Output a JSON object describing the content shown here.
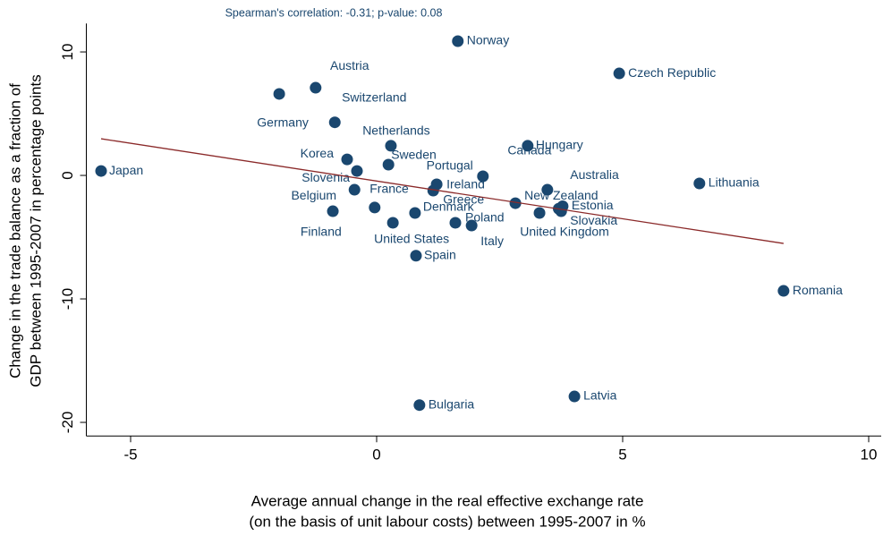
{
  "chart_data": {
    "type": "scatter",
    "title": "Spearman's correlation:  -0.31; p-value: 0.08",
    "x_label": [
      "Average annual change in the real effective exchange rate",
      "(on the basis of unit labour costs) between 1995-2007 in %"
    ],
    "y_label": [
      "Change in the trade balance as a fraction of",
      "GDP between 1995-2007 in percentage points"
    ],
    "color": "#1a476f",
    "labels": [
      "Japan",
      "Germany",
      "Austria",
      "Switzerland",
      "Korea",
      "Slovenia",
      "France",
      "Belgium",
      "Finland",
      "Netherlands",
      "Sweden",
      "Portugal",
      "Ireland",
      "Greece",
      "Denmark",
      "United States",
      "Spain",
      "Poland",
      "Italy",
      "Hungary",
      "Canada",
      "Australia",
      "New Zealand",
      "Estonia",
      "Slovakia",
      "United Kingdom",
      "Czech Republic",
      "Lithuania",
      "Romania",
      "Norway",
      "Latvia",
      "Bulgaria"
    ],
    "x": [
      -5.6,
      -1.98,
      -1.24,
      -0.85,
      -0.6,
      -0.4,
      -0.45,
      -0.89,
      -0.04,
      0.29,
      0.24,
      2.16,
      1.22,
      1.15,
      0.78,
      0.33,
      0.8,
      1.6,
      1.93,
      3.07,
      3.47,
      3.7,
      2.82,
      3.78,
      3.75,
      3.31,
      4.93,
      6.56,
      8.27,
      1.65,
      4.02,
      0.87
    ],
    "values": [
      0.36,
      6.6,
      7.1,
      4.3,
      1.3,
      0.36,
      -1.16,
      -2.9,
      -2.6,
      2.4,
      0.87,
      -0.07,
      -0.72,
      -1.23,
      -3.04,
      -3.84,
      -6.5,
      -3.84,
      -4.06,
      2.4,
      -1.16,
      -2.7,
      -2.25,
      -2.5,
      -2.9,
      -3.04,
      8.26,
      -0.65,
      -9.35,
      10.87,
      -17.9,
      -18.6
    ],
    "fit_line": {
      "x": [
        -5.6,
        8.27
      ],
      "y": [
        2.97,
        -5.51
      ],
      "color": "#8b2a2a"
    },
    "xlim": [
      -5.9,
      10.2
    ],
    "ylim": [
      -21.1,
      12.3
    ],
    "xticks": [
      -5,
      0,
      5,
      10
    ],
    "yticks": [
      -20,
      -10,
      0,
      10
    ]
  }
}
